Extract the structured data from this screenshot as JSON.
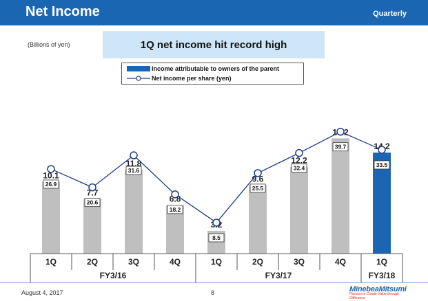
{
  "header": {
    "title": "Net Income",
    "right_label": "Quarterly"
  },
  "unit_label": "(Billions of yen)",
  "highlight": "1Q net income hit record high",
  "legend": {
    "bar": "Income attributable to owners of the parent",
    "line": "Net income per share (yen)"
  },
  "colors": {
    "header": "#1b66b3",
    "bar_gray": "#bfbfbf",
    "bar_blue": "#1b66b3",
    "line": "#1f3c8a",
    "highlight_bg": "#cfe6f8"
  },
  "chart_data": {
    "type": "bar",
    "categories": [
      "1Q",
      "2Q",
      "3Q",
      "4Q",
      "1Q",
      "2Q",
      "3Q",
      "4Q",
      "1Q"
    ],
    "groups": [
      {
        "label": "FY3/16",
        "span": 4
      },
      {
        "label": "FY3/17",
        "span": 4
      },
      {
        "label": "FY3/18",
        "span": 1
      }
    ],
    "series": [
      {
        "name": "Income attributable to owners of the parent",
        "type": "bar",
        "values": [
          10.1,
          7.7,
          11.8,
          6.8,
          3.2,
          9.6,
          12.2,
          16.2,
          14.2
        ],
        "value_labels": [
          "10.1",
          "7.7",
          "11.8",
          "6.8",
          "3.2",
          "9.6",
          "12.2",
          "16.2",
          "14.2"
        ]
      },
      {
        "name": "Net income per share (yen)",
        "type": "line",
        "values": [
          26.9,
          20.6,
          31.6,
          18.2,
          8.5,
          25.5,
          32.4,
          39.7,
          33.5
        ],
        "value_labels": [
          "26.9",
          "20.6",
          "31.6",
          "18.2",
          "8.5",
          "25.5",
          "32.4",
          "39.7",
          "33.5"
        ]
      }
    ],
    "highlight_index": 8
  },
  "footer": {
    "date": "August 4, 2017",
    "page": "8",
    "logo": "MinebeaMitsumi",
    "logo_tagline": "Passion to Create Value through Difference"
  }
}
